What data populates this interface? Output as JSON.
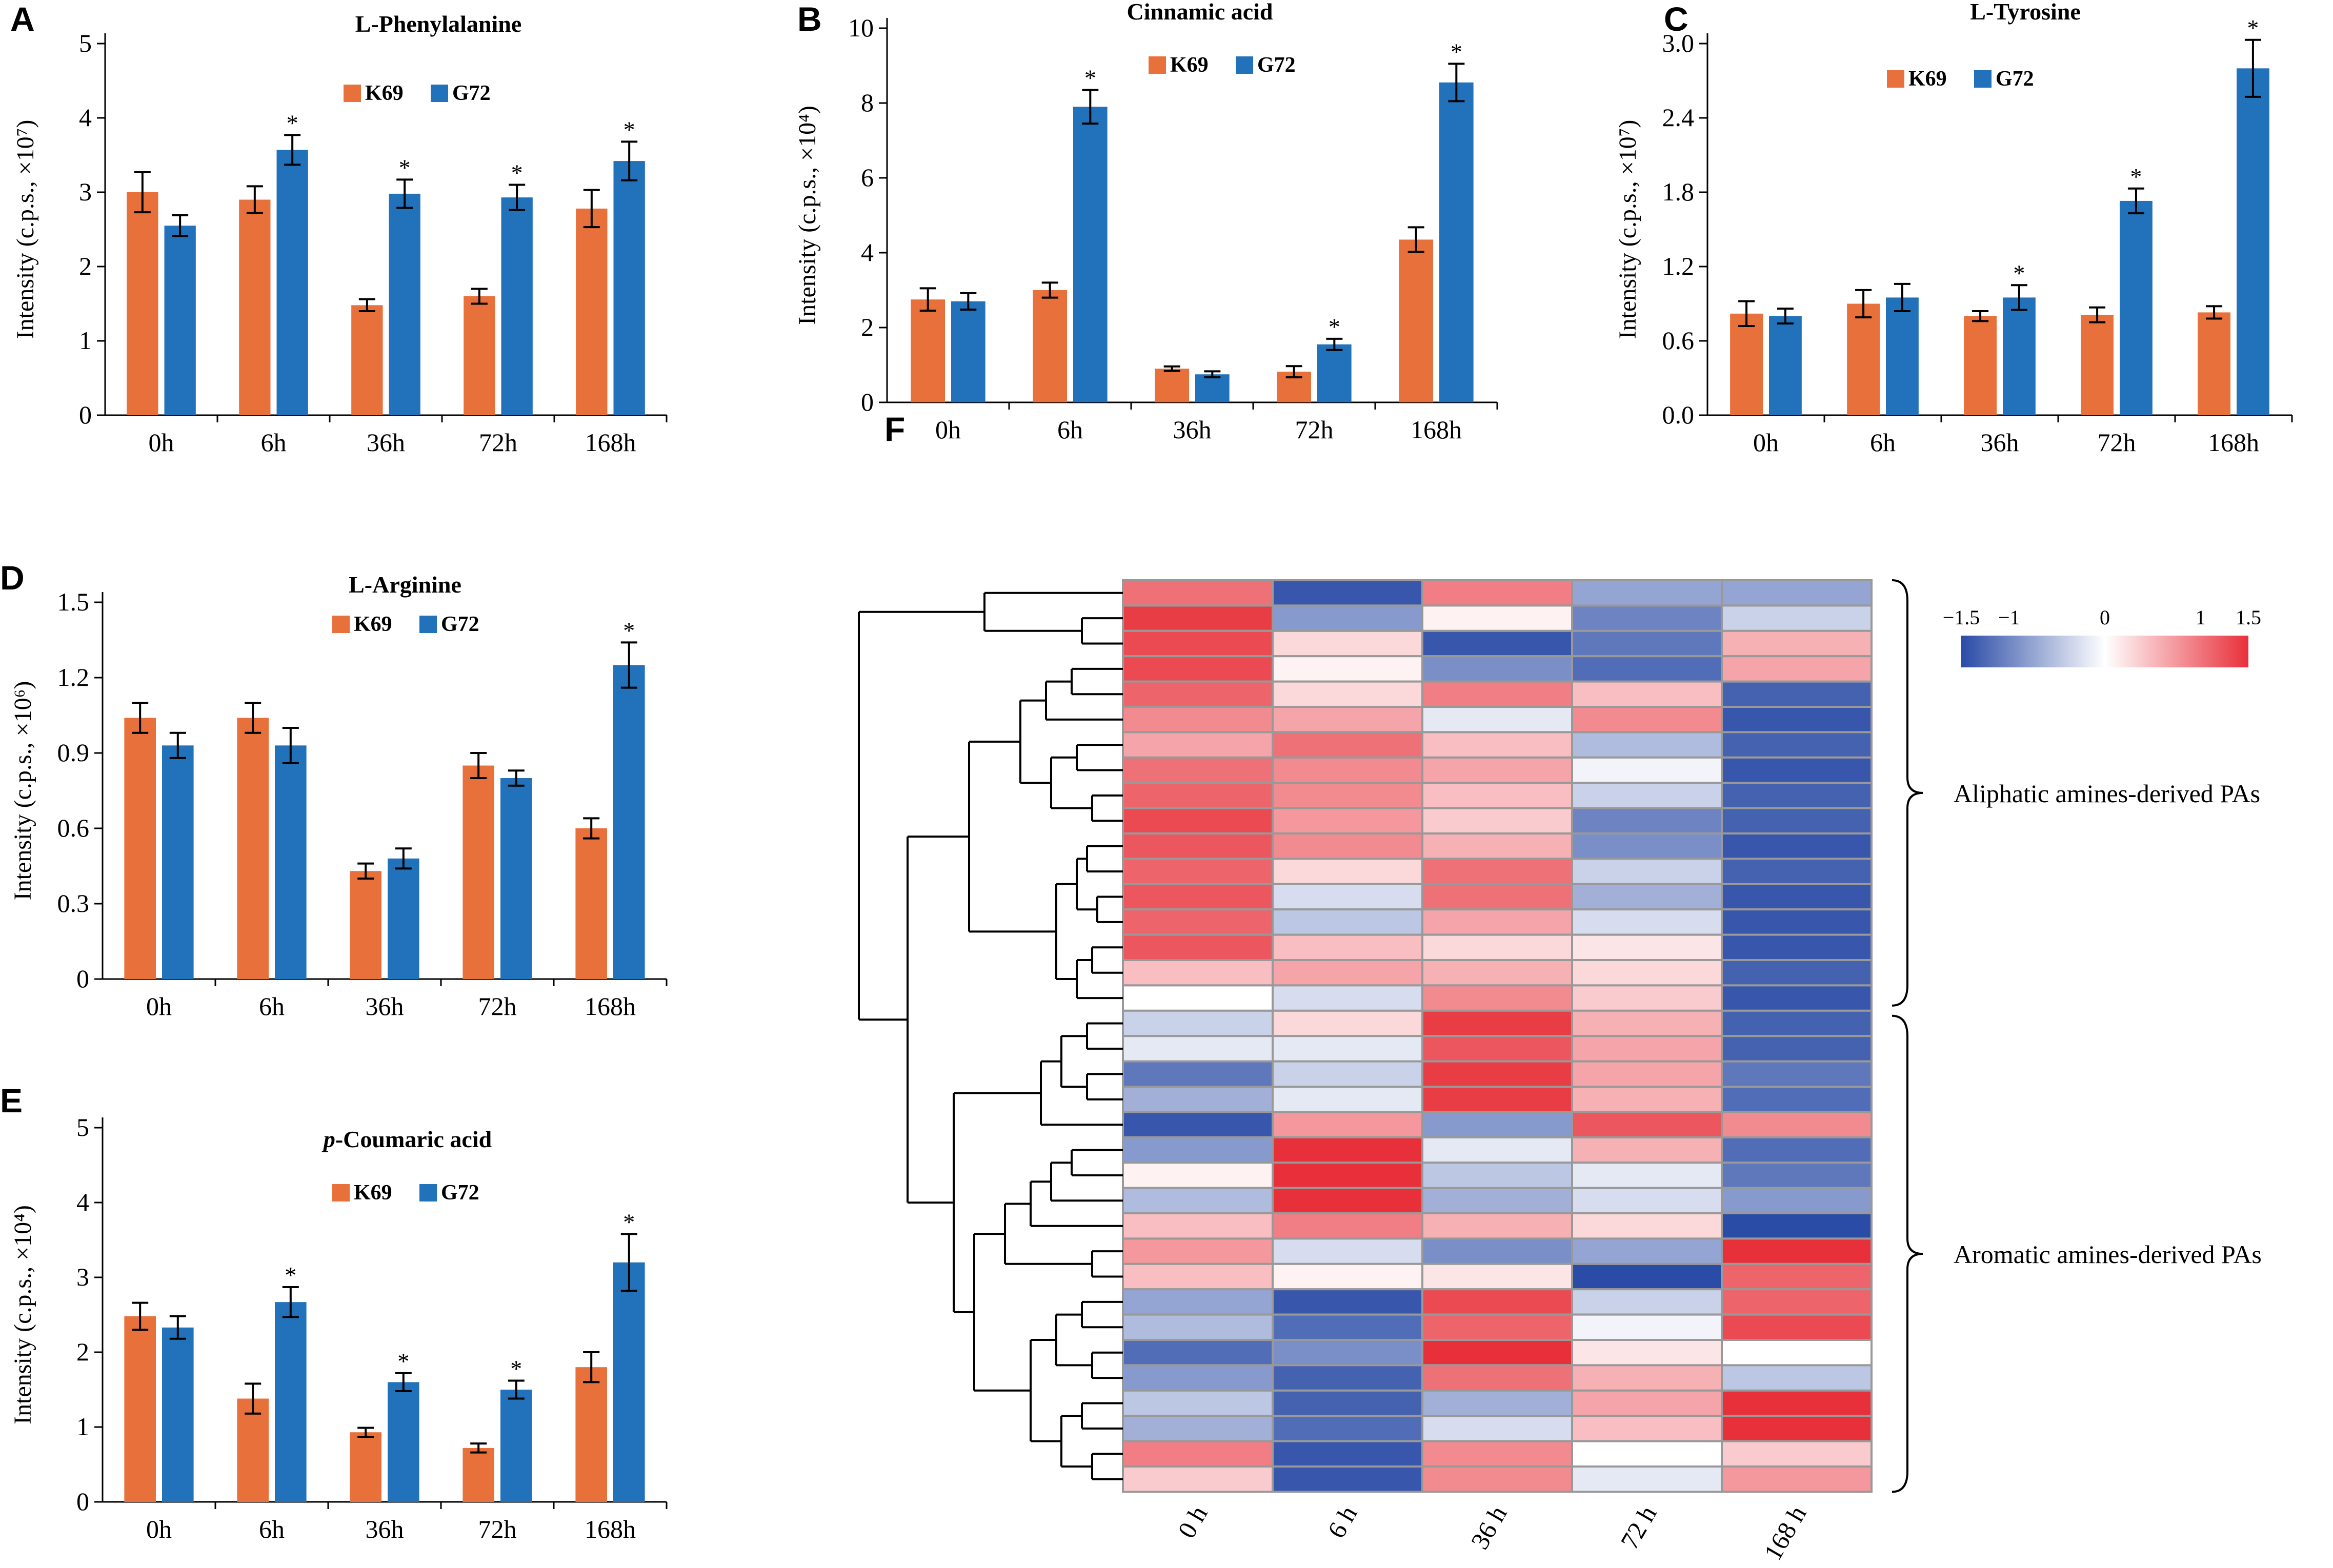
{
  "colors": {
    "K69": "#E8703A",
    "G72": "#2272BB",
    "high": "#E8303A",
    "mid": "#FFFFFF",
    "low": "#2A4BA6",
    "grid": "#999999"
  },
  "chart_data": [
    {
      "id": "A",
      "type": "bar",
      "letter": "A",
      "title": "L-Phenylalanine",
      "ylabel": "Intensity (c.p.s., ×10⁷)",
      "categories": [
        "0h",
        "6h",
        "36h",
        "72h",
        "168h"
      ],
      "ylim": [
        0,
        5
      ],
      "yticks": [
        "0",
        "1",
        "2",
        "3",
        "4",
        "5"
      ],
      "series": [
        {
          "name": "K69",
          "values": [
            3.0,
            2.9,
            1.48,
            1.6,
            2.78
          ],
          "errors": [
            0.27,
            0.18,
            0.08,
            0.1,
            0.25
          ]
        },
        {
          "name": "G72",
          "values": [
            2.55,
            3.57,
            2.98,
            2.93,
            3.42
          ],
          "errors": [
            0.14,
            0.2,
            0.19,
            0.17,
            0.26
          ]
        }
      ],
      "significant": [
        false,
        true,
        true,
        true,
        true
      ]
    },
    {
      "id": "B",
      "type": "bar",
      "letter": "B",
      "title": "Cinnamic acid",
      "ylabel": "Intensity (c.p.s., ×10⁴)",
      "categories": [
        "0h",
        "6h",
        "36h",
        "72h",
        "168h"
      ],
      "ylim": [
        0,
        10
      ],
      "yticks": [
        "0",
        "2",
        "4",
        "6",
        "8",
        "10"
      ],
      "series": [
        {
          "name": "K69",
          "values": [
            2.75,
            3.0,
            0.9,
            0.82,
            4.35
          ],
          "errors": [
            0.3,
            0.2,
            0.06,
            0.15,
            0.33
          ]
        },
        {
          "name": "G72",
          "values": [
            2.7,
            7.9,
            0.75,
            1.55,
            8.55
          ],
          "errors": [
            0.22,
            0.45,
            0.08,
            0.15,
            0.5
          ]
        }
      ],
      "significant": [
        false,
        true,
        false,
        true,
        true
      ]
    },
    {
      "id": "C",
      "type": "bar",
      "letter": "C",
      "title": "L-Tyrosine",
      "ylabel": "Intensity (c.p.s., ×10⁷)",
      "categories": [
        "0h",
        "6h",
        "36h",
        "72h",
        "168h"
      ],
      "ylim": [
        0,
        3.0
      ],
      "yticks": [
        "0.0",
        "0.6",
        "1.2",
        "1.8",
        "2.4",
        "3.0"
      ],
      "series": [
        {
          "name": "K69",
          "values": [
            0.82,
            0.9,
            0.8,
            0.81,
            0.83
          ],
          "errors": [
            0.1,
            0.11,
            0.04,
            0.06,
            0.05
          ]
        },
        {
          "name": "G72",
          "values": [
            0.8,
            0.95,
            0.95,
            1.73,
            2.8
          ],
          "errors": [
            0.06,
            0.11,
            0.1,
            0.1,
            0.23
          ]
        }
      ],
      "significant": [
        false,
        false,
        true,
        true,
        true
      ]
    },
    {
      "id": "D",
      "type": "bar",
      "letter": "D",
      "title": "L-Arginine",
      "ylabel": "Intensity (c.p.s., ×10⁶)",
      "categories": [
        "0h",
        "6h",
        "36h",
        "72h",
        "168h"
      ],
      "ylim": [
        0,
        1.5
      ],
      "yticks": [
        "0",
        "0.3",
        "0.6",
        "0.9",
        "1.2",
        "1.5"
      ],
      "series": [
        {
          "name": "K69",
          "values": [
            1.04,
            1.04,
            0.43,
            0.85,
            0.6
          ],
          "errors": [
            0.06,
            0.06,
            0.03,
            0.05,
            0.04
          ]
        },
        {
          "name": "G72",
          "values": [
            0.93,
            0.93,
            0.48,
            0.8,
            1.25
          ],
          "errors": [
            0.05,
            0.07,
            0.04,
            0.03,
            0.09
          ]
        }
      ],
      "significant": [
        false,
        false,
        false,
        false,
        true
      ]
    },
    {
      "id": "E",
      "type": "bar",
      "letter": "E",
      "title_italic": "p",
      "title": "-Coumaric acid",
      "ylabel": "Intensity (c.p.s., ×10⁴)",
      "categories": [
        "0h",
        "6h",
        "36h",
        "72h",
        "168h"
      ],
      "ylim": [
        0,
        5
      ],
      "yticks": [
        "0",
        "1",
        "2",
        "3",
        "4",
        "5"
      ],
      "series": [
        {
          "name": "K69",
          "values": [
            2.48,
            1.38,
            0.93,
            0.72,
            1.8
          ],
          "errors": [
            0.18,
            0.2,
            0.06,
            0.06,
            0.2
          ]
        },
        {
          "name": "G72",
          "values": [
            2.33,
            2.67,
            1.6,
            1.5,
            3.2
          ],
          "errors": [
            0.15,
            0.2,
            0.12,
            0.12,
            0.38
          ]
        }
      ],
      "significant": [
        false,
        true,
        true,
        true,
        true
      ]
    },
    {
      "id": "F",
      "type": "heatmap",
      "letter": "F",
      "columns": [
        "0 h",
        "6 h",
        "36 h",
        "72 h",
        "168 h"
      ],
      "scale_labels": [
        "−1.5",
        "−1",
        "0",
        "1",
        "1.5"
      ],
      "scale_values": [
        -1.5,
        -1,
        0,
        1,
        1.5
      ],
      "groups": [
        "Aliphatic amines-derived PAs",
        "Aromatic amines-derived PAs"
      ],
      "values": [
        [
          1.1,
          -1.5,
          1.0,
          -0.8,
          -0.8
        ],
        [
          1.5,
          -0.9,
          0.1,
          -1.1,
          -0.4
        ],
        [
          1.4,
          0.3,
          -1.5,
          -1.2,
          0.6
        ],
        [
          1.4,
          0.1,
          -1.0,
          -1.3,
          0.7
        ],
        [
          1.2,
          0.3,
          1.0,
          0.5,
          -1.4
        ],
        [
          0.9,
          0.7,
          -0.2,
          0.9,
          -1.5
        ],
        [
          0.7,
          1.1,
          0.5,
          -0.6,
          -1.4
        ],
        [
          1.1,
          0.9,
          0.7,
          -0.1,
          -1.5
        ],
        [
          1.2,
          0.9,
          0.5,
          -0.4,
          -1.4
        ],
        [
          1.4,
          0.8,
          0.4,
          -1.1,
          -1.4
        ],
        [
          1.3,
          0.9,
          0.6,
          -1.0,
          -1.5
        ],
        [
          1.2,
          0.3,
          1.1,
          -0.4,
          -1.4
        ],
        [
          1.3,
          -0.3,
          1.1,
          -0.7,
          -1.5
        ],
        [
          1.2,
          -0.5,
          0.7,
          -0.3,
          -1.5
        ],
        [
          1.3,
          0.5,
          0.3,
          0.2,
          -1.5
        ],
        [
          0.5,
          0.7,
          0.6,
          0.3,
          -1.4
        ],
        [
          0.0,
          -0.3,
          0.9,
          0.4,
          -1.5
        ],
        [
          -0.4,
          0.3,
          1.5,
          0.6,
          -1.4
        ],
        [
          -0.2,
          -0.2,
          1.3,
          0.7,
          -1.4
        ],
        [
          -1.2,
          -0.4,
          1.5,
          0.7,
          -1.2
        ],
        [
          -0.7,
          -0.2,
          1.5,
          0.6,
          -1.3
        ],
        [
          -1.5,
          0.8,
          -0.9,
          1.3,
          0.9
        ],
        [
          -0.9,
          1.6,
          -0.2,
          0.6,
          -1.3
        ],
        [
          0.1,
          1.6,
          -0.5,
          -0.2,
          -1.2
        ],
        [
          -0.6,
          1.6,
          -0.7,
          -0.3,
          -0.9
        ],
        [
          0.5,
          1.0,
          0.6,
          0.3,
          -1.6
        ],
        [
          0.8,
          -0.3,
          -1.0,
          -0.8,
          1.6
        ],
        [
          0.5,
          0.1,
          0.2,
          -1.6,
          1.2
        ],
        [
          -0.8,
          -1.5,
          1.4,
          -0.4,
          1.2
        ],
        [
          -0.6,
          -1.3,
          1.2,
          -0.1,
          1.4
        ],
        [
          -1.3,
          -1.0,
          1.6,
          0.2,
          0.0
        ],
        [
          -0.9,
          -1.4,
          1.1,
          0.6,
          -0.5
        ],
        [
          -0.5,
          -1.4,
          -0.7,
          0.7,
          1.6
        ],
        [
          -0.7,
          -1.3,
          -0.3,
          0.5,
          1.6
        ],
        [
          1.0,
          -1.5,
          0.9,
          0.0,
          0.4
        ],
        [
          0.4,
          -1.5,
          0.9,
          -0.2,
          0.8
        ]
      ]
    }
  ]
}
